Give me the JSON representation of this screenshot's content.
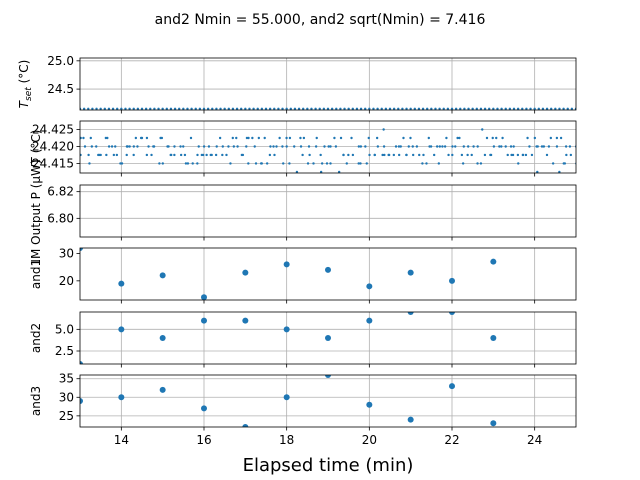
{
  "figure": {
    "title": "and2 Nmin = 55.000, and2 sqrt(Nmin) = 7.416",
    "xlabel": "Elapsed time (min)",
    "accent_color": "#1f77b4",
    "grid_color": "#b0b0b0"
  },
  "chart_data": [
    {
      "type": "scatter",
      "ylabel_main": "T",
      "ylabel_sub": "set",
      "ylabel_tail": " (°C)",
      "xlim": [
        13,
        25
      ],
      "ylim": [
        24.13,
        25.05
      ],
      "yticks": [
        "24.5",
        "25.0"
      ],
      "ytick_values": [
        24.5,
        25.0
      ],
      "grid": true,
      "dense": true,
      "series": [
        {
          "levels": [
            24.15
          ],
          "x_range": [
            13,
            25
          ],
          "step": 0.1
        }
      ]
    },
    {
      "type": "scatter",
      "ylabel_main": "T (°C)",
      "xlim": [
        13,
        25
      ],
      "ylim": [
        24.4122,
        24.4275
      ],
      "yticks": [
        "24.425",
        "24.420",
        "24.415"
      ],
      "ytick_values": [
        24.425,
        24.42,
        24.415
      ],
      "grid": true,
      "dense": true,
      "series": [
        {
          "levels": [
            24.4125,
            24.415,
            24.4175,
            24.42,
            24.4225,
            24.425
          ],
          "x_range": [
            13,
            25
          ],
          "step": 0.1
        }
      ]
    },
    {
      "type": "scatter",
      "ylabel_main": "IM Output P (μW)",
      "xlim": [
        13,
        25
      ],
      "ylim": [
        6.786,
        6.825
      ],
      "yticks": [
        "6.82",
        "6.80"
      ],
      "ytick_values": [
        6.82,
        6.8
      ],
      "grid": true,
      "series": []
    },
    {
      "type": "scatter",
      "ylabel_main": "and1",
      "xlim": [
        13,
        25
      ],
      "ylim": [
        13,
        32
      ],
      "yticks": [
        "30",
        "20"
      ],
      "ytick_values": [
        30,
        20
      ],
      "grid": false,
      "series": [
        {
          "x": [
            13,
            14,
            15,
            16,
            17,
            18,
            19,
            20,
            21,
            22,
            23
          ],
          "y": [
            32,
            19,
            22,
            14,
            23,
            26,
            24,
            18,
            23,
            20,
            27
          ]
        }
      ]
    },
    {
      "type": "scatter",
      "ylabel_main": "and2",
      "xlim": [
        13,
        25
      ],
      "ylim": [
        1,
        7
      ],
      "yticks": [
        "5.0",
        "2.5"
      ],
      "ytick_values": [
        5.0,
        2.5
      ],
      "grid": true,
      "series": [
        {
          "x": [
            13,
            14,
            15,
            16,
            17,
            18,
            19,
            20,
            21,
            22,
            23
          ],
          "y": [
            1,
            5,
            4,
            6,
            6,
            5,
            4,
            6,
            7,
            7,
            4
          ]
        }
      ]
    },
    {
      "type": "scatter",
      "ylabel_main": "and3",
      "xlim": [
        13,
        25
      ],
      "ylim": [
        22,
        36
      ],
      "yticks": [
        "35",
        "30",
        "25"
      ],
      "ytick_values": [
        35,
        30,
        25
      ],
      "grid": true,
      "series": [
        {
          "x": [
            13,
            14,
            15,
            16,
            17,
            18,
            19,
            20,
            21,
            22,
            23
          ],
          "y": [
            29,
            30,
            32,
            27,
            22,
            30,
            36,
            28,
            24,
            33,
            23
          ]
        }
      ]
    }
  ],
  "x_axis": {
    "ticks": [
      "14",
      "16",
      "18",
      "20",
      "22",
      "24"
    ],
    "tick_values": [
      14,
      16,
      18,
      20,
      22,
      24
    ]
  }
}
